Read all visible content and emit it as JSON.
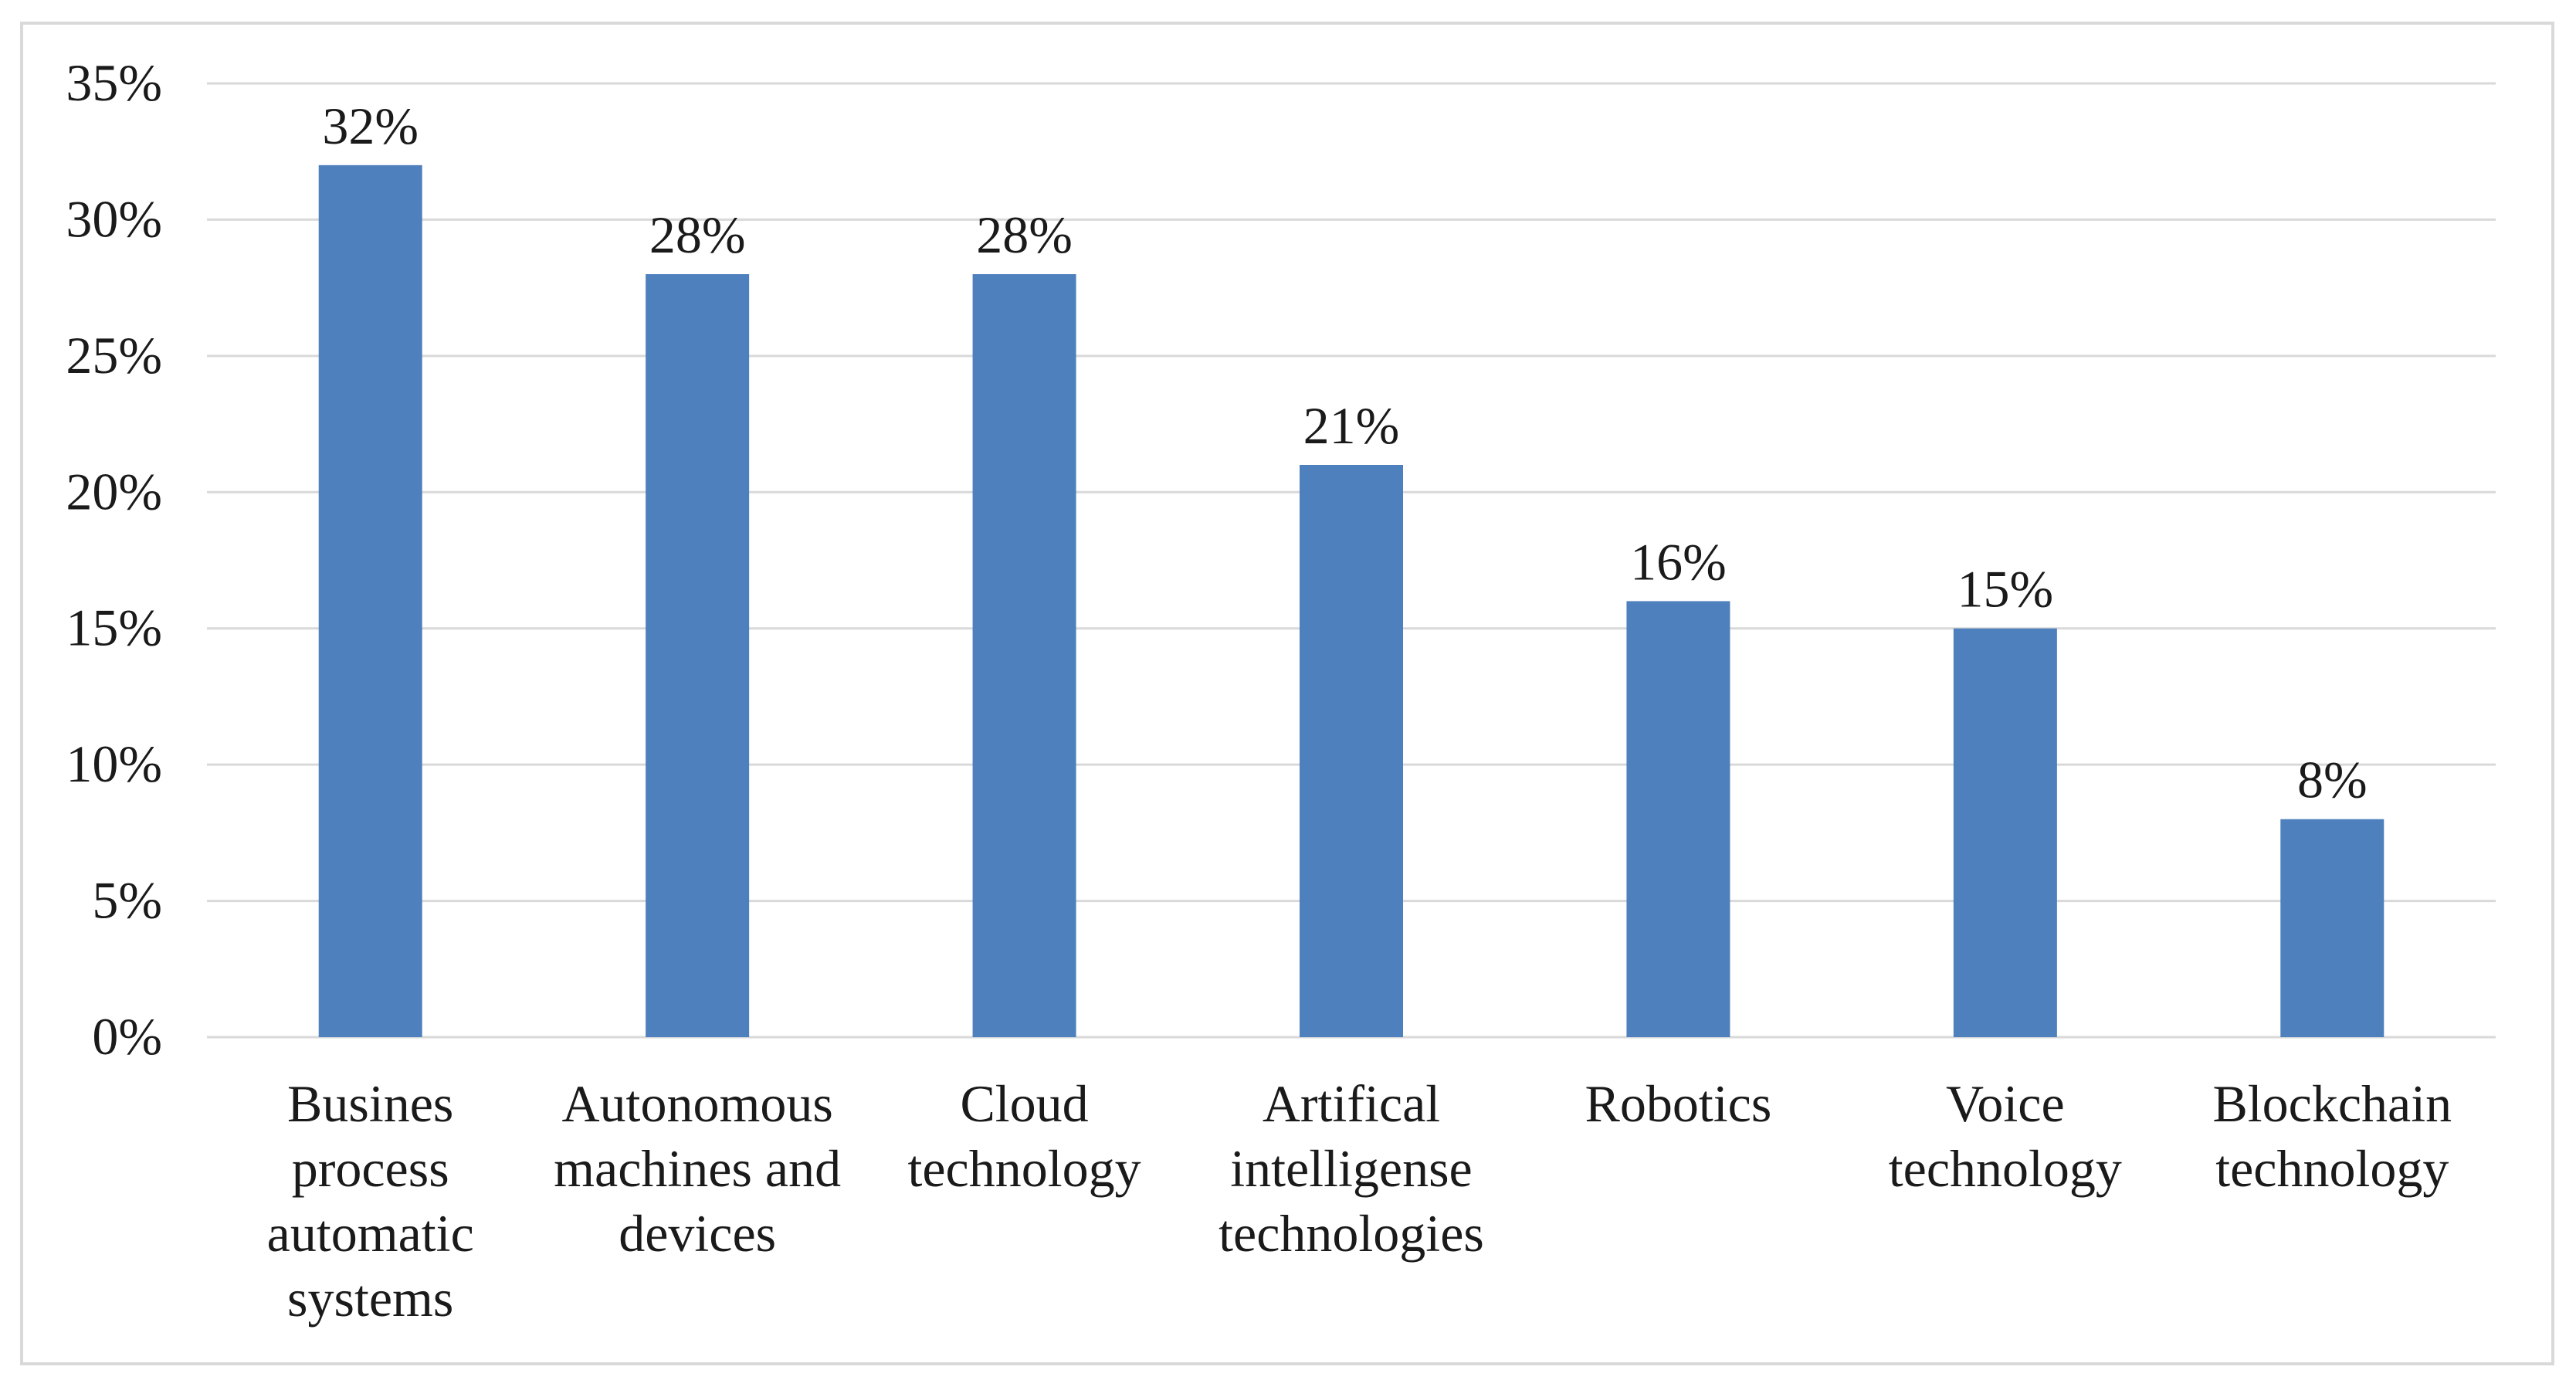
{
  "chart_data": {
    "type": "bar",
    "title": "",
    "xlabel": "",
    "ylabel": "",
    "ylim": [
      0,
      35
    ],
    "yticks": [
      "0%",
      "5%",
      "10%",
      "15%",
      "20%",
      "25%",
      "30%",
      "35%"
    ],
    "grid": true,
    "legend": "none",
    "categories": [
      [
        "Busines",
        "process",
        "automatic",
        "systems"
      ],
      [
        "Autonomous",
        "machines and",
        "devices"
      ],
      [
        "Cloud",
        "technology"
      ],
      [
        "Artifical",
        "intelligense",
        "technologies"
      ],
      [
        "Robotics"
      ],
      [
        "Voice",
        "technology"
      ],
      [
        "Blockchain",
        "technology"
      ]
    ],
    "values": [
      32,
      28,
      28,
      21,
      16,
      15,
      8
    ],
    "data_labels": [
      "32%",
      "28%",
      "28%",
      "21%",
      "16%",
      "15%",
      "8%"
    ],
    "colors": {
      "bar": "#4e80bd",
      "grid": "#d9d9d9",
      "frame": "#d9d9d9"
    }
  }
}
